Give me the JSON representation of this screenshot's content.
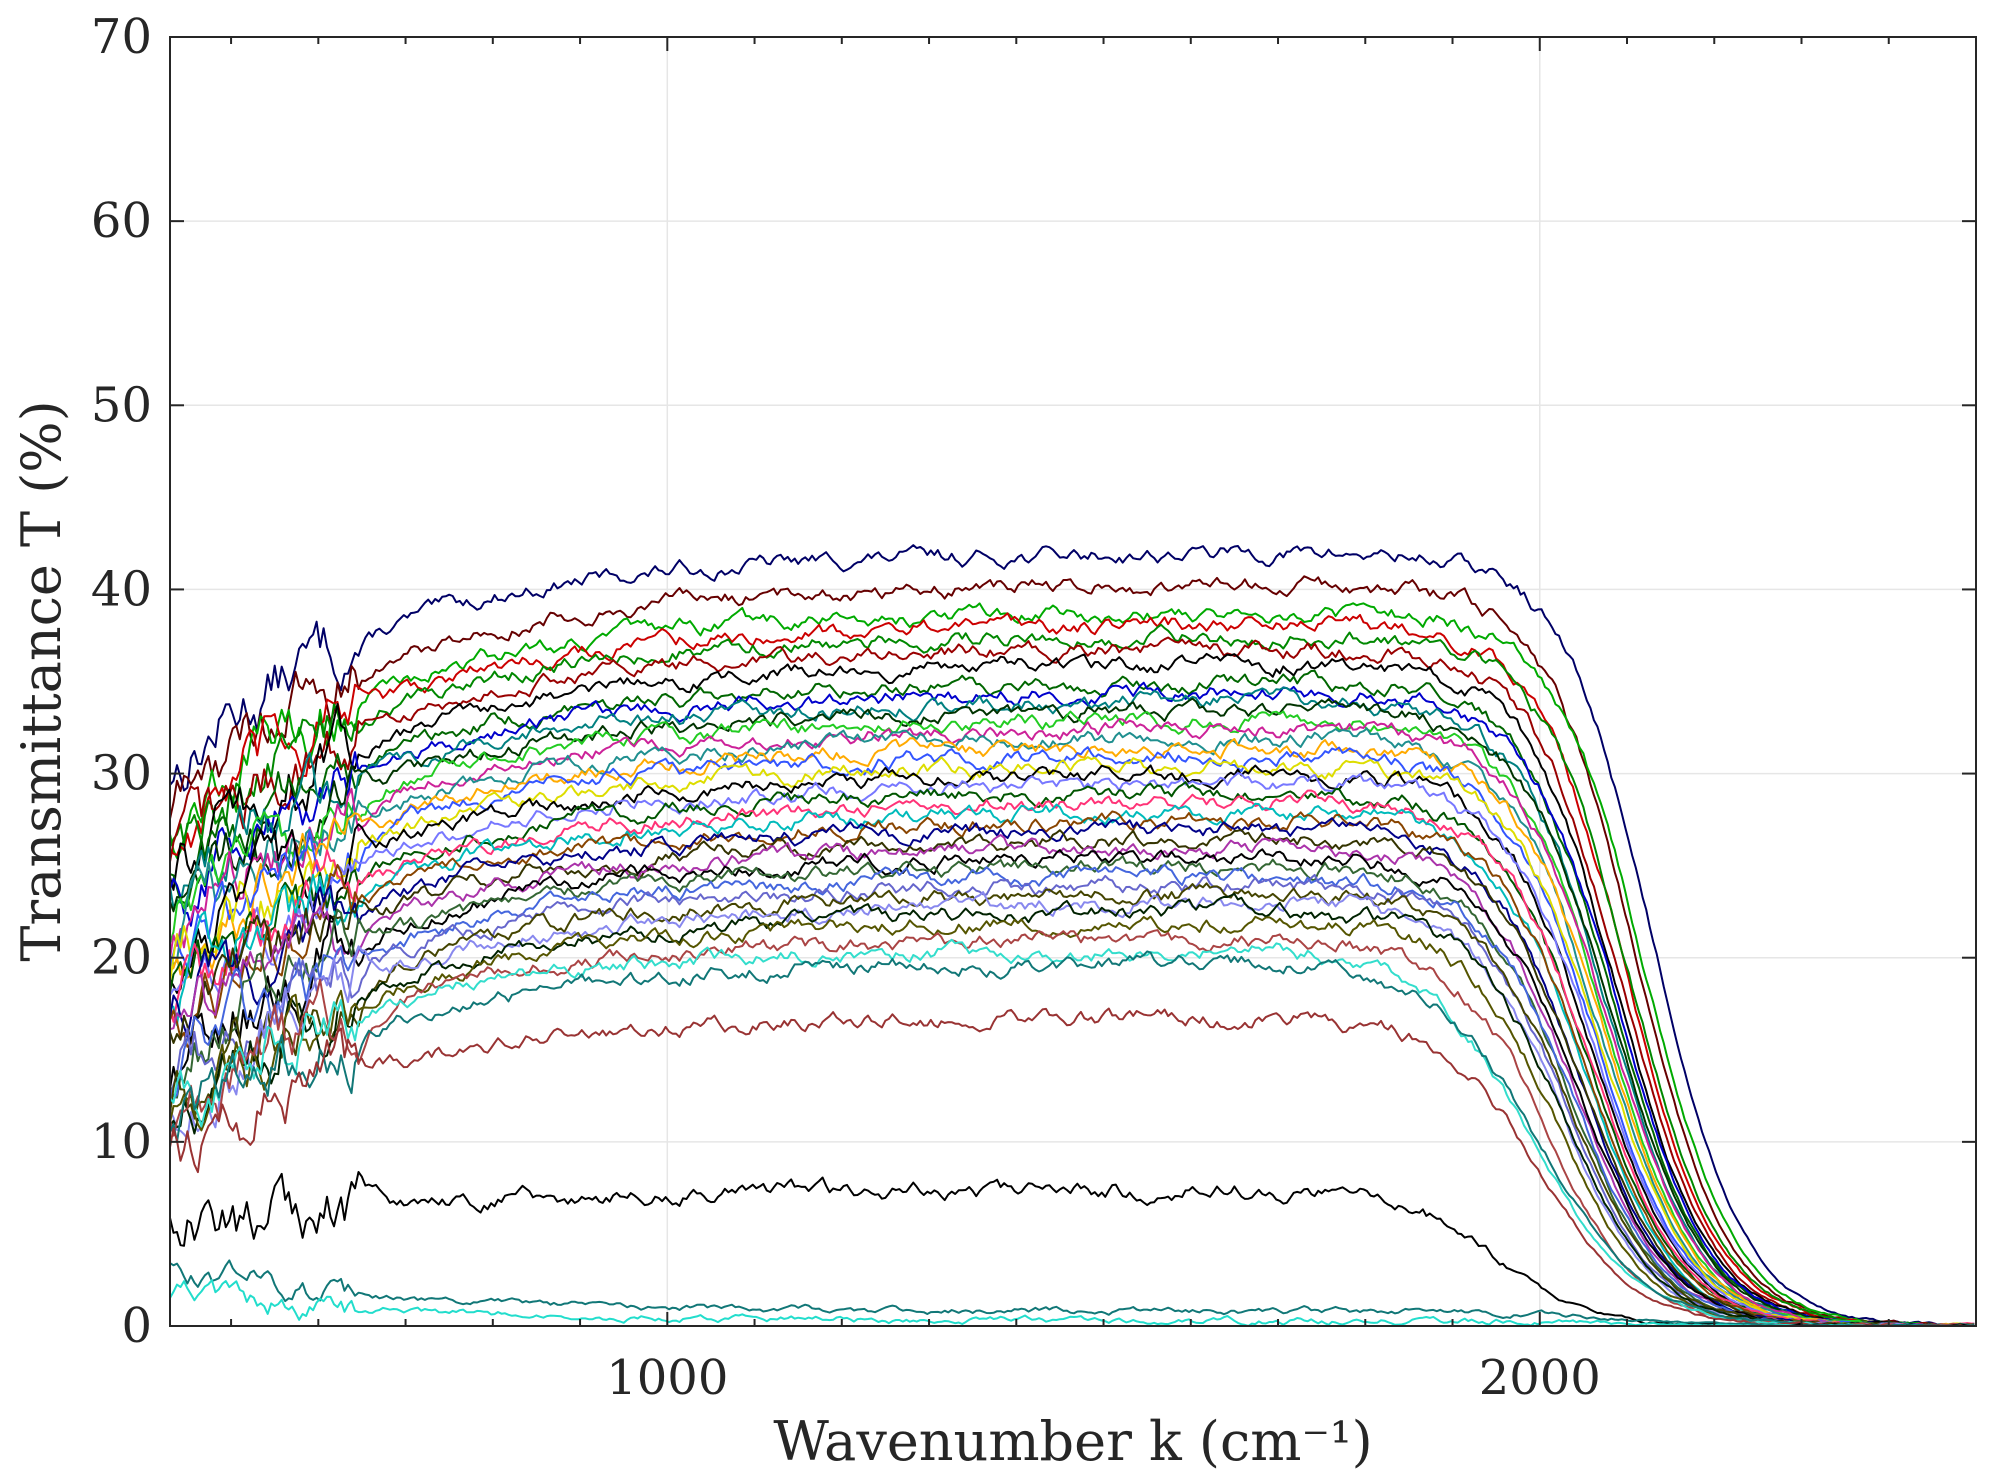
{
  "chart_data": {
    "type": "line",
    "xlabel": "Wavenumber k (cm⁻¹)",
    "ylabel": "Transmittance T (%)",
    "xlim": [
      430,
      2500
    ],
    "ylim": [
      0,
      70
    ],
    "xticks": [
      1000,
      2000
    ],
    "yticks": [
      0,
      10,
      20,
      30,
      40,
      50,
      60,
      70
    ],
    "xtick_labels": [
      "1000",
      "2000"
    ],
    "ytick_labels": [
      "0",
      "10",
      "20",
      "30",
      "40",
      "50",
      "60",
      "70"
    ],
    "grid": true,
    "legend": "none",
    "series_note": "Approximately 120 overlaid transmittance spectra; representative traces listed by plateau level and cutoff",
    "series": [
      {
        "start": 30,
        "plateau": 42.0,
        "cutoff": 2130,
        "width": 95,
        "color": "#000066"
      },
      {
        "start": 28,
        "plateau": 40.3,
        "cutoff": 2110,
        "width": 95,
        "color": "#660000"
      },
      {
        "start": 27,
        "plateau": 38.8,
        "cutoff": 2120,
        "width": 95,
        "color": "#00aa00"
      },
      {
        "start": 26,
        "plateau": 38.2,
        "cutoff": 2100,
        "width": 95,
        "color": "#cc0000"
      },
      {
        "start": 26,
        "plateau": 37.5,
        "cutoff": 2105,
        "width": 95,
        "color": "#008800"
      },
      {
        "start": 25,
        "plateau": 36.8,
        "cutoff": 2095,
        "width": 95,
        "color": "#990000"
      },
      {
        "start": 24,
        "plateau": 36.0,
        "cutoff": 2090,
        "width": 95,
        "color": "#000000"
      },
      {
        "start": 24,
        "plateau": 35.0,
        "cutoff": 2085,
        "width": 95,
        "color": "#006600"
      },
      {
        "start": 23,
        "plateau": 34.5,
        "cutoff": 2090,
        "width": 95,
        "color": "#0000cc"
      },
      {
        "start": 23,
        "plateau": 34.0,
        "cutoff": 2080,
        "width": 95,
        "color": "#008080"
      },
      {
        "start": 22,
        "plateau": 33.5,
        "cutoff": 2085,
        "width": 95,
        "color": "#003300"
      },
      {
        "start": 22,
        "plateau": 33.0,
        "cutoff": 2075,
        "width": 95,
        "color": "#22cc22"
      },
      {
        "start": 21,
        "plateau": 32.5,
        "cutoff": 2080,
        "width": 95,
        "color": "#cc2299"
      },
      {
        "start": 21,
        "plateau": 32.0,
        "cutoff": 2070,
        "width": 95,
        "color": "#1f8f8f"
      },
      {
        "start": 20,
        "plateau": 31.5,
        "cutoff": 2075,
        "width": 95,
        "color": "#ffaa00"
      },
      {
        "start": 20,
        "plateau": 31.0,
        "cutoff": 2065,
        "width": 95,
        "color": "#3355ff"
      },
      {
        "start": 19,
        "plateau": 30.5,
        "cutoff": 2070,
        "width": 95,
        "color": "#dddd00"
      },
      {
        "start": 19,
        "plateau": 30.0,
        "cutoff": 2060,
        "width": 95,
        "color": "#000000"
      },
      {
        "start": 18,
        "plateau": 29.5,
        "cutoff": 2065,
        "width": 95,
        "color": "#7777ff"
      },
      {
        "start": 18,
        "plateau": 29.0,
        "cutoff": 2055,
        "width": 95,
        "color": "#005500"
      },
      {
        "start": 17,
        "plateau": 28.5,
        "cutoff": 2060,
        "width": 95,
        "color": "#ff3377"
      },
      {
        "start": 17,
        "plateau": 28.0,
        "cutoff": 2050,
        "width": 95,
        "color": "#00bbbb"
      },
      {
        "start": 16,
        "plateau": 27.5,
        "cutoff": 2055,
        "width": 95,
        "color": "#884400"
      },
      {
        "start": 16,
        "plateau": 27.0,
        "cutoff": 2045,
        "width": 95,
        "color": "#000088"
      },
      {
        "start": 15,
        "plateau": 26.5,
        "cutoff": 2050,
        "width": 95,
        "color": "#333300"
      },
      {
        "start": 15,
        "plateau": 26.0,
        "cutoff": 2040,
        "width": 95,
        "color": "#aa33aa"
      },
      {
        "start": 14,
        "plateau": 25.5,
        "cutoff": 2045,
        "width": 95,
        "color": "#000000"
      },
      {
        "start": 14,
        "plateau": 25.0,
        "cutoff": 2035,
        "width": 95,
        "color": "#336633"
      },
      {
        "start": 13,
        "plateau": 24.5,
        "cutoff": 2040,
        "width": 95,
        "color": "#4466dd"
      },
      {
        "start": 13,
        "plateau": 24.0,
        "cutoff": 2030,
        "width": 95,
        "color": "#6666cc"
      },
      {
        "start": 12,
        "plateau": 23.5,
        "cutoff": 2035,
        "width": 95,
        "color": "#444400"
      },
      {
        "start": 12,
        "plateau": 23.0,
        "cutoff": 2025,
        "width": 95,
        "color": "#8888ee"
      },
      {
        "start": 11,
        "plateau": 22.5,
        "cutoff": 2030,
        "width": 95,
        "color": "#002200"
      },
      {
        "start": 11,
        "plateau": 22.0,
        "cutoff": 2020,
        "width": 95,
        "color": "#555500"
      },
      {
        "start": 11,
        "plateau": 21.0,
        "cutoff": 2010,
        "width": 95,
        "color": "#aa4444"
      },
      {
        "start": 12,
        "plateau": 20.5,
        "cutoff": 1990,
        "width": 110,
        "color": "#33ddcc"
      },
      {
        "start": 10,
        "plateau": 19.8,
        "cutoff": 2000,
        "width": 110,
        "color": "#117777"
      },
      {
        "start": 9,
        "plateau": 16.8,
        "cutoff": 2000,
        "width": 100,
        "color": "#993333"
      },
      {
        "start": 5,
        "plateau": 7.4,
        "cutoff": 1950,
        "width": 95,
        "color": "#000000"
      },
      {
        "start": 3,
        "plateau": 0.8,
        "cutoff": 2100,
        "width": 120,
        "color": "#117777"
      },
      {
        "start": 2,
        "plateau": 0.3,
        "cutoff": 2100,
        "width": 120,
        "color": "#22ddcc"
      }
    ]
  }
}
